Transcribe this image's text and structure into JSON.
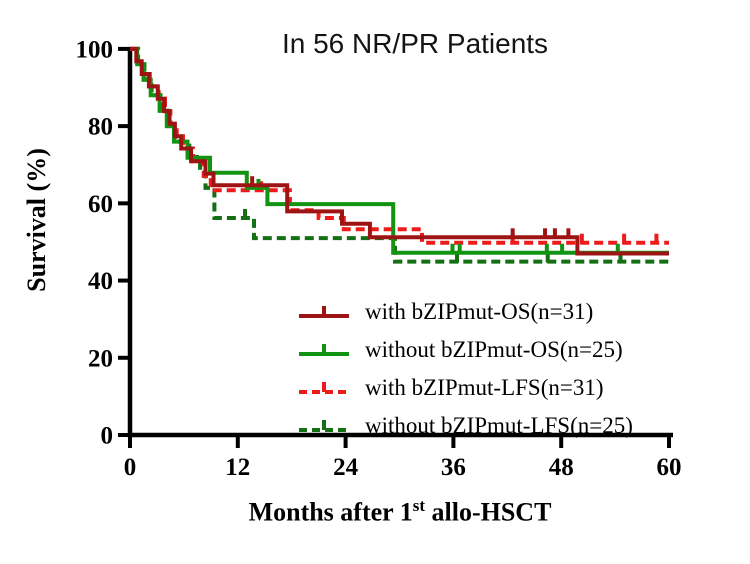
{
  "title": "In 56 NR/PR Patients",
  "y_axis": {
    "label": "Survival (%)",
    "ticks": [
      0,
      20,
      40,
      60,
      80,
      100
    ]
  },
  "x_axis": {
    "label_main": "Months after 1",
    "label_sup": "st",
    "label_tail": " allo-HSCT",
    "ticks": [
      0,
      12,
      24,
      36,
      48,
      60
    ]
  },
  "colors": {
    "axis": "#000000",
    "title": "#141414",
    "os_with": "#9E1414",
    "os_without": "#129412",
    "lfs_with": "#EE1B1B",
    "lfs_without": "#156F15"
  },
  "chart_data": {
    "type": "line",
    "subtype": "kaplan_meier_step",
    "title": "In 56 NR/PR Patients",
    "xlabel": "Months after 1st allo-HSCT",
    "ylabel": "Survival (%)",
    "xlim": [
      0,
      60
    ],
    "ylim": [
      0,
      100
    ],
    "x_ticks": [
      0,
      12,
      24,
      36,
      48,
      60
    ],
    "y_ticks": [
      0,
      20,
      40,
      60,
      80,
      100
    ],
    "grid": false,
    "legend_position": "inside-lower-right",
    "series": [
      {
        "name": "with bZIPmut-OS(n=31)",
        "color": "#9E1414",
        "style": "solid",
        "n": 31,
        "points": [
          [
            0,
            100
          ],
          [
            0.7,
            96.8
          ],
          [
            1.3,
            93.5
          ],
          [
            2.1,
            90.3
          ],
          [
            3.1,
            87.1
          ],
          [
            3.8,
            83.9
          ],
          [
            4.4,
            80.6
          ],
          [
            5.0,
            77.4
          ],
          [
            5.7,
            74.2
          ],
          [
            6.8,
            70.9
          ],
          [
            8.4,
            67.7
          ],
          [
            9.3,
            64.7
          ],
          [
            17.5,
            57.9
          ],
          [
            23.6,
            54.7
          ],
          [
            26.7,
            51.2
          ],
          [
            49.8,
            47.0
          ],
          [
            60,
            47.0
          ]
        ],
        "censor_marks": [
          [
            13.6,
            64.7
          ],
          [
            42.6,
            51.2
          ],
          [
            46.2,
            51.2
          ],
          [
            47.3,
            51.2
          ],
          [
            48.8,
            51.2
          ]
        ]
      },
      {
        "name": "without bZIPmut-OS(n=25)",
        "color": "#129412",
        "style": "solid",
        "n": 25,
        "points": [
          [
            0,
            100
          ],
          [
            0.8,
            96
          ],
          [
            1.5,
            92
          ],
          [
            2.3,
            88
          ],
          [
            3.3,
            84
          ],
          [
            4.1,
            80
          ],
          [
            4.9,
            76
          ],
          [
            6.4,
            71.8
          ],
          [
            8.9,
            67.9
          ],
          [
            13.0,
            64.0
          ],
          [
            15.3,
            59.8
          ],
          [
            29.3,
            47.2
          ],
          [
            60,
            47.2
          ]
        ],
        "censor_marks": [
          [
            14.3,
            64.0
          ],
          [
            35.9,
            47.2
          ],
          [
            36.7,
            47.2
          ],
          [
            46.4,
            47.2
          ],
          [
            48.1,
            47.2
          ],
          [
            54.3,
            47.2
          ]
        ]
      },
      {
        "name": "with bZIPmut-LFS(n=31)",
        "color": "#EE1B1B",
        "style": "dashed",
        "n": 31,
        "points": [
          [
            0,
            100
          ],
          [
            0.8,
            96.8
          ],
          [
            1.4,
            93.5
          ],
          [
            2.2,
            90.3
          ],
          [
            3.2,
            87.1
          ],
          [
            3.9,
            83.9
          ],
          [
            4.5,
            80.6
          ],
          [
            5.2,
            77.4
          ],
          [
            5.9,
            74.2
          ],
          [
            7.0,
            70.9
          ],
          [
            8.2,
            67.1
          ],
          [
            9.0,
            63.4
          ],
          [
            17.8,
            58.2
          ],
          [
            21.0,
            56.2
          ],
          [
            23.8,
            53.3
          ],
          [
            32.5,
            49.8
          ],
          [
            60,
            49.8
          ]
        ],
        "censor_marks": [
          [
            14.6,
            63.4
          ],
          [
            42.6,
            49.8
          ],
          [
            50.3,
            49.8
          ],
          [
            55.0,
            49.8
          ],
          [
            58.6,
            49.8
          ]
        ]
      },
      {
        "name": "without bZIPmut-LFS(n=25)",
        "color": "#156F15",
        "style": "dashed",
        "n": 25,
        "points": [
          [
            0,
            100
          ],
          [
            0.9,
            96
          ],
          [
            1.6,
            92
          ],
          [
            2.4,
            88
          ],
          [
            3.4,
            84
          ],
          [
            4.2,
            80
          ],
          [
            5.0,
            76
          ],
          [
            6.6,
            72
          ],
          [
            7.8,
            68
          ],
          [
            8.4,
            64
          ],
          [
            9.4,
            56.2
          ],
          [
            13.8,
            51.0
          ],
          [
            29.5,
            44.9
          ],
          [
            60,
            44.9
          ]
        ],
        "censor_marks": [
          [
            12.8,
            56.2
          ],
          [
            36.4,
            44.9
          ],
          [
            46.5,
            44.9
          ],
          [
            54.6,
            44.9
          ]
        ]
      }
    ]
  }
}
